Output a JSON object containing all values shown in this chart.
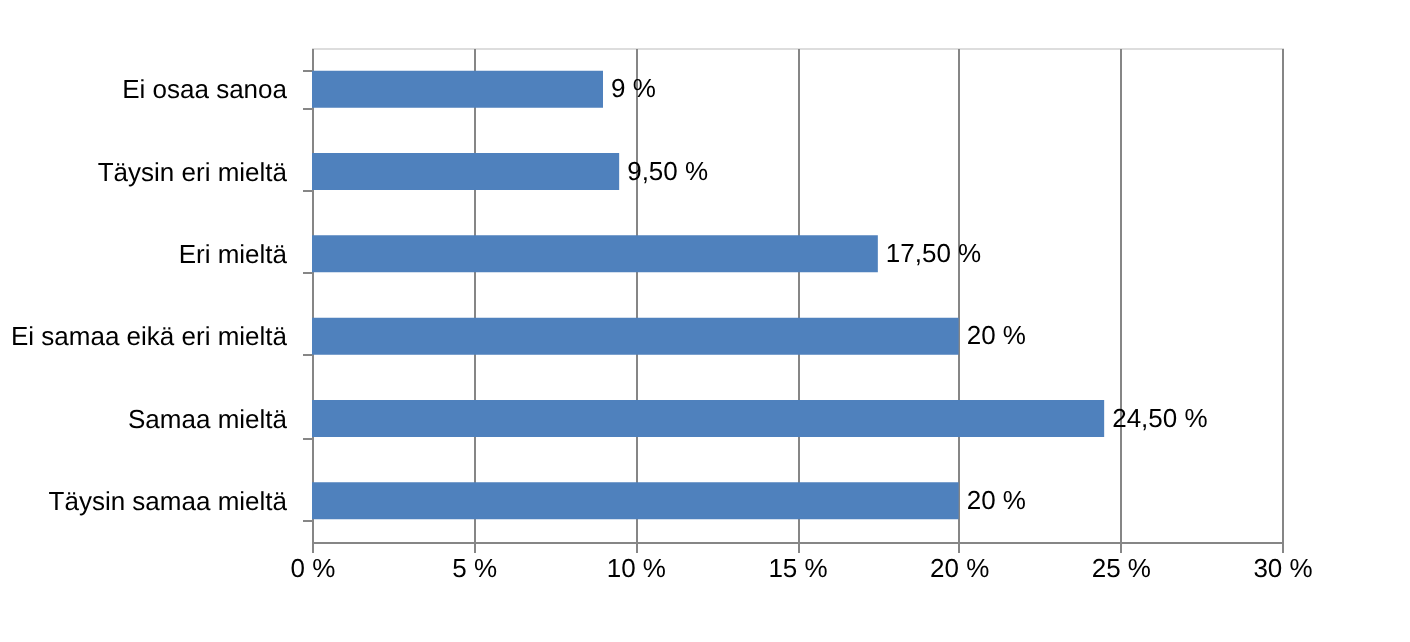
{
  "chart_data": {
    "type": "bar",
    "orientation": "horizontal",
    "categories": [
      "Ei osaa sanoa",
      "Täysin eri mieltä",
      "Eri mieltä",
      "Ei samaa eikä eri mieltä",
      "Samaa mieltä",
      "Täysin samaa mieltä"
    ],
    "values": [
      9,
      9.5,
      17.5,
      20,
      24.5,
      20
    ],
    "value_labels": [
      "9 %",
      "9,50 %",
      "17,50 %",
      "20 %",
      "24,50 %",
      "20 %"
    ],
    "color": "#4f81bd",
    "xlim": [
      0,
      30
    ],
    "xticks": [
      {
        "value": 0,
        "label": "0 %"
      },
      {
        "value": 5,
        "label": "5 %"
      },
      {
        "value": 10,
        "label": "10 %"
      },
      {
        "value": 15,
        "label": "15 %"
      },
      {
        "value": 20,
        "label": "20 %"
      },
      {
        "value": 25,
        "label": "25 %"
      },
      {
        "value": 30,
        "label": "30 %"
      }
    ],
    "grid": "x"
  }
}
